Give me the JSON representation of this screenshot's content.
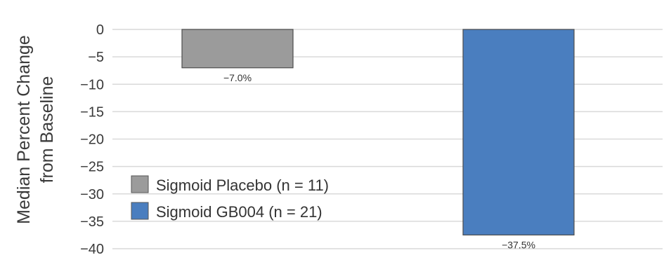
{
  "chart_data": {
    "type": "bar",
    "ylabel": [
      "Median Percent Change",
      "from Baseline"
    ],
    "ylim": [
      -40,
      0
    ],
    "yticks": [
      0,
      -5,
      -10,
      -15,
      -20,
      -25,
      -30,
      -35,
      -40
    ],
    "ytick_labels": [
      "0",
      "−5",
      "−10",
      "−15",
      "−20",
      "−25",
      "−30",
      "−35",
      "−40"
    ],
    "grid": true,
    "legend_position": "bottom-left",
    "series": [
      {
        "name": "Sigmoid Placebo (n = 11)",
        "value": -7.0,
        "label": "−7.0%",
        "color": "#9b9b9b"
      },
      {
        "name": "Sigmoid GB004 (n = 21)",
        "value": -37.5,
        "label": "−37.5%",
        "color": "#4a7ebf"
      }
    ]
  }
}
